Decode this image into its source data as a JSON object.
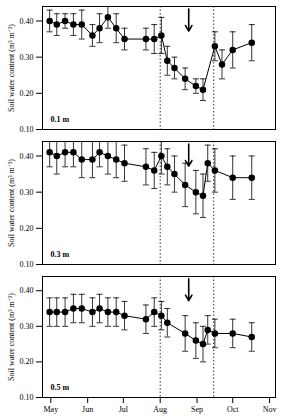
{
  "chart_data": [
    {
      "type": "line",
      "annotation": "0.1 m",
      "y_label": "Soil water content (m³ m⁻³)",
      "color": "#000000",
      "marker": "circle",
      "tick_labels": "y",
      "x": [
        120,
        126,
        133,
        140,
        147,
        156,
        162,
        169,
        176,
        183,
        201,
        208,
        214,
        219,
        225,
        234,
        243,
        249,
        259,
        265,
        274,
        290
      ],
      "values": [
        0.4,
        0.39,
        0.4,
        0.39,
        0.39,
        0.36,
        0.38,
        0.41,
        0.38,
        0.35,
        0.35,
        0.35,
        0.36,
        0.29,
        0.27,
        0.24,
        0.22,
        0.21,
        0.33,
        0.28,
        0.32,
        0.34
      ],
      "errors": [
        0.03,
        0.03,
        0.02,
        0.03,
        0.04,
        0.03,
        0.04,
        0.03,
        0.04,
        0.03,
        0.03,
        0.04,
        0.05,
        0.04,
        0.03,
        0.03,
        0.02,
        0.03,
        0.04,
        0.04,
        0.05,
        0.05
      ],
      "reference_lines": [
        213,
        258
      ],
      "arrow_x": 237,
      "xlim": [
        114,
        310
      ],
      "xticks": [
        {
          "value": 121,
          "label": "May"
        },
        {
          "value": 152,
          "label": "Jun"
        },
        {
          "value": 182,
          "label": "Jul"
        },
        {
          "value": 213,
          "label": "Aug"
        },
        {
          "value": 244,
          "label": "Sep"
        },
        {
          "value": 274,
          "label": "Oct"
        },
        {
          "value": 305,
          "label": "Nov"
        }
      ],
      "ylim": [
        0.1,
        0.44
      ],
      "yticks": [
        {
          "value": 0.1,
          "label": "0.10"
        },
        {
          "value": 0.2,
          "label": "0.20"
        },
        {
          "value": 0.3,
          "label": "0.30"
        },
        {
          "value": 0.4,
          "label": "0.40"
        }
      ]
    },
    {
      "type": "line",
      "annotation": "0.3 m",
      "y_label": "Soil water content (m³ m⁻³)",
      "color": "#000000",
      "marker": "circle",
      "tick_labels": "y",
      "x": [
        120,
        126,
        133,
        140,
        147,
        156,
        162,
        169,
        176,
        183,
        201,
        208,
        214,
        219,
        225,
        234,
        243,
        249,
        253,
        259,
        274,
        290
      ],
      "values": [
        0.41,
        0.4,
        0.41,
        0.41,
        0.39,
        0.39,
        0.41,
        0.4,
        0.39,
        0.38,
        0.37,
        0.36,
        0.4,
        0.37,
        0.35,
        0.32,
        0.3,
        0.29,
        0.38,
        0.36,
        0.34,
        0.34
      ],
      "errors": [
        0.04,
        0.05,
        0.04,
        0.04,
        0.05,
        0.05,
        0.04,
        0.05,
        0.05,
        0.05,
        0.05,
        0.05,
        0.05,
        0.05,
        0.05,
        0.06,
        0.06,
        0.06,
        0.05,
        0.06,
        0.06,
        0.06
      ],
      "reference_lines": [
        213,
        258
      ],
      "arrow_x": 237,
      "xlim": [
        114,
        310
      ],
      "xticks": [
        {
          "value": 121,
          "label": "May"
        },
        {
          "value": 152,
          "label": "Jun"
        },
        {
          "value": 182,
          "label": "Jul"
        },
        {
          "value": 213,
          "label": "Aug"
        },
        {
          "value": 244,
          "label": "Sep"
        },
        {
          "value": 274,
          "label": "Oct"
        },
        {
          "value": 305,
          "label": "Nov"
        }
      ],
      "ylim": [
        0.1,
        0.44
      ],
      "yticks": [
        {
          "value": 0.1,
          "label": "0.10"
        },
        {
          "value": 0.2,
          "label": "0.20"
        },
        {
          "value": 0.3,
          "label": "0.30"
        },
        {
          "value": 0.4,
          "label": "0.40"
        }
      ]
    },
    {
      "type": "line",
      "annotation": "0.5 m",
      "y_label": "Soil water content (m³ m⁻³)",
      "color": "#000000",
      "marker": "circle",
      "x": [
        120,
        126,
        133,
        140,
        147,
        156,
        162,
        169,
        176,
        183,
        201,
        208,
        214,
        219,
        234,
        243,
        249,
        253,
        259,
        274,
        290
      ],
      "values": [
        0.34,
        0.34,
        0.34,
        0.35,
        0.35,
        0.34,
        0.35,
        0.34,
        0.34,
        0.33,
        0.32,
        0.34,
        0.33,
        0.31,
        0.28,
        0.26,
        0.25,
        0.29,
        0.28,
        0.28,
        0.27
      ],
      "errors": [
        0.04,
        0.04,
        0.04,
        0.04,
        0.04,
        0.04,
        0.04,
        0.04,
        0.04,
        0.04,
        0.04,
        0.04,
        0.04,
        0.04,
        0.05,
        0.05,
        0.05,
        0.04,
        0.04,
        0.04,
        0.04
      ],
      "reference_lines": [
        213,
        258
      ],
      "arrow_x": 237,
      "xlim": [
        114,
        310
      ],
      "xticks": [
        {
          "value": 121,
          "label": "May"
        },
        {
          "value": 152,
          "label": "Jun"
        },
        {
          "value": 182,
          "label": "Jul"
        },
        {
          "value": 213,
          "label": "Aug"
        },
        {
          "value": 244,
          "label": "Sep"
        },
        {
          "value": 274,
          "label": "Oct"
        },
        {
          "value": 305,
          "label": "Nov"
        }
      ],
      "ylim": [
        0.1,
        0.44
      ],
      "yticks": [
        {
          "value": 0.1,
          "label": "0.10"
        },
        {
          "value": 0.2,
          "label": "0.20"
        },
        {
          "value": 0.3,
          "label": "0.30"
        },
        {
          "value": 0.4,
          "label": "0.40"
        }
      ]
    }
  ]
}
